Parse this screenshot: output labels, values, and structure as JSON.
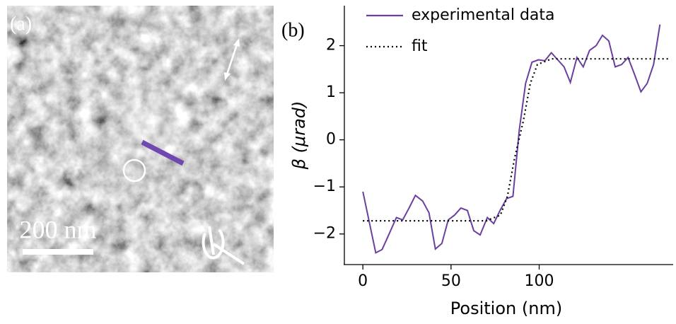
{
  "image_panel": {
    "label": "(a)",
    "scale_bar": "200 nm"
  },
  "chart_data": {
    "type": "line",
    "panel_label": "(b)",
    "x_label": "Position (nm)",
    "y_label": "β (μrad)",
    "xlim": [
      -10.5,
      176
    ],
    "ylim": [
      -2.65,
      2.85
    ],
    "xticks": [
      0,
      50,
      100
    ],
    "yticks": [
      {
        "value": -2,
        "label": "−2"
      },
      {
        "value": -1,
        "label": "−1"
      },
      0,
      1,
      2
    ],
    "legend": "upper left",
    "series": [
      {
        "name": "experimental data",
        "color": "#6a3fa0",
        "style": "solid",
        "x": [
          0,
          7.3,
          10.9,
          14.9,
          19.0,
          22.6,
          26.2,
          29.8,
          33.9,
          37.5,
          41.1,
          44.8,
          48.4,
          52.0,
          55.6,
          59.3,
          62.9,
          66.5,
          70.6,
          74.2,
          77.8,
          81.5,
          85.1,
          88.7,
          92.3,
          95.9,
          99.6,
          103.2,
          106.9,
          110.5,
          114.1,
          117.7,
          121.4,
          125.0,
          128.6,
          132.3,
          135.9,
          139.5,
          143.1,
          146.8,
          150.4,
          154.0,
          157.7,
          161.3,
          164.9,
          168.5
        ],
        "values": [
          -1.1,
          -2.4,
          -2.33,
          -2.0,
          -1.65,
          -1.7,
          -1.45,
          -1.18,
          -1.3,
          -1.55,
          -2.32,
          -2.2,
          -1.7,
          -1.6,
          -1.45,
          -1.5,
          -1.93,
          -2.02,
          -1.65,
          -1.78,
          -1.5,
          -1.25,
          -1.2,
          0.2,
          1.2,
          1.65,
          1.7,
          1.68,
          1.85,
          1.7,
          1.55,
          1.22,
          1.75,
          1.55,
          1.9,
          2.0,
          2.22,
          2.1,
          1.55,
          1.6,
          1.75,
          1.4,
          1.02,
          1.2,
          1.6,
          2.45
        ]
      },
      {
        "name": "fit",
        "color": "#000000",
        "style": "dotted",
        "x": [
          0,
          70,
          78,
          82,
          86,
          88.5,
          91,
          95,
          99,
          107,
          174
        ],
        "values": [
          -1.72,
          -1.72,
          -1.6,
          -1.2,
          -0.4,
          0,
          0.4,
          1.2,
          1.6,
          1.72,
          1.72
        ]
      }
    ]
  }
}
